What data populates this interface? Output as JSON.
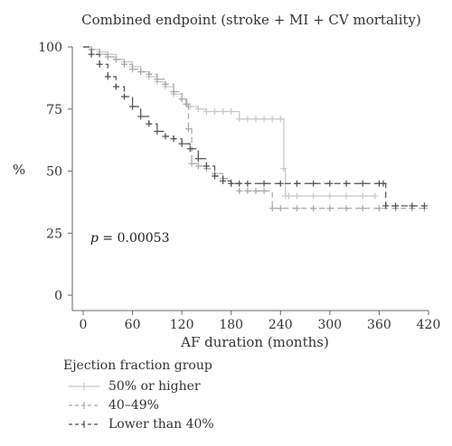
{
  "chart_data": {
    "type": "line",
    "title": "Combined endpoint (stroke + MI + CV mortality)",
    "xlabel": "AF duration (months)",
    "ylabel": "%",
    "xlim": [
      0,
      420
    ],
    "ylim": [
      0,
      100
    ],
    "xticks": [
      "0",
      "60",
      "120",
      "180",
      "240",
      "300",
      "360",
      "420"
    ],
    "yticks": [
      "0",
      "25",
      "50",
      "75",
      "100"
    ],
    "annotation": {
      "p_label": "p",
      "p_value": " = 0.00053"
    },
    "legend_title": "Ejection fraction group",
    "series": [
      {
        "name": "50% or higher",
        "color": "#c8c8c8",
        "dash": "none",
        "x": [
          0,
          10,
          20,
          30,
          40,
          50,
          60,
          70,
          80,
          90,
          100,
          110,
          120,
          125,
          130,
          140,
          150,
          160,
          170,
          180,
          190,
          200,
          210,
          220,
          230,
          240,
          244,
          246,
          250,
          260,
          280,
          300,
          320,
          340,
          355
        ],
        "y": [
          100,
          99,
          98,
          97,
          95,
          94,
          92,
          90,
          88,
          86,
          84,
          81,
          79,
          77,
          76,
          75,
          74,
          74,
          74,
          74,
          71,
          71,
          71,
          71,
          71,
          71,
          51,
          40,
          40,
          40,
          40,
          40,
          40,
          40,
          40
        ]
      },
      {
        "name": "40–49%",
        "color": "#a6a6a6",
        "dash": "6,4",
        "x": [
          0,
          10,
          20,
          30,
          40,
          50,
          60,
          70,
          80,
          90,
          100,
          110,
          120,
          126,
          128,
          132,
          140,
          150,
          160,
          170,
          180,
          190,
          200,
          210,
          220,
          230,
          240,
          260,
          280,
          300,
          320,
          340,
          360,
          380,
          400,
          415
        ],
        "y": [
          100,
          99,
          97,
          96,
          95,
          93,
          91,
          90,
          89,
          87,
          85,
          82,
          79,
          77,
          67,
          53,
          52,
          51,
          49,
          47,
          45,
          42,
          42,
          42,
          42,
          35,
          35,
          35,
          35,
          35,
          35,
          35,
          35,
          35,
          35,
          35
        ]
      },
      {
        "name": "Lower than 40%",
        "color": "#505050",
        "dash": "7,4",
        "x": [
          0,
          10,
          20,
          30,
          40,
          50,
          60,
          70,
          80,
          90,
          100,
          110,
          120,
          130,
          140,
          150,
          160,
          170,
          180,
          190,
          200,
          220,
          240,
          260,
          280,
          300,
          320,
          340,
          360,
          365,
          368,
          380,
          400,
          415
        ],
        "y": [
          100,
          97,
          93,
          88,
          84,
          80,
          76,
          72,
          69,
          66,
          64,
          63,
          61,
          59,
          55,
          52,
          48,
          46,
          45,
          45,
          45,
          45,
          45,
          45,
          45,
          45,
          45,
          45,
          45,
          45,
          36,
          36,
          36,
          36
        ]
      }
    ]
  }
}
